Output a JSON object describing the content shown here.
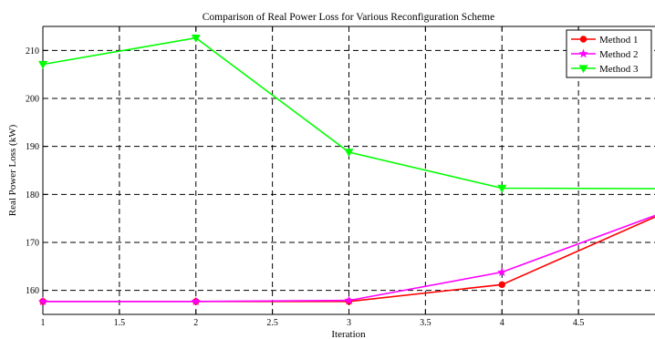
{
  "chart_data": {
    "type": "line",
    "title": "Comparison of Real Power Loss for Various Reconfiguration Scheme",
    "xlabel": "Iteration",
    "ylabel": "Real Power Loss (kW)",
    "xlim": [
      1,
      5
    ],
    "ylim": [
      155,
      215
    ],
    "xticks": [
      1,
      1.5,
      2,
      2.5,
      3,
      3.5,
      4,
      4.5
    ],
    "xtick_labels": [
      "1",
      "1.5",
      "2",
      "2.5",
      "3",
      "3.5",
      "4",
      "4.5"
    ],
    "yticks": [
      160,
      170,
      180,
      190,
      200,
      210
    ],
    "ytick_labels": [
      "160",
      "170",
      "180",
      "190",
      "200",
      "210"
    ],
    "grid": true,
    "legend_position": "top-right",
    "x": [
      1,
      2,
      3,
      4,
      5
    ],
    "series": [
      {
        "name": "Method 1",
        "values": [
          157.7,
          157.7,
          157.7,
          161.2,
          175.3
        ],
        "color": "#ff0000",
        "marker": "circle"
      },
      {
        "name": "Method 2",
        "values": [
          157.7,
          157.7,
          157.9,
          163.8,
          175.6
        ],
        "color": "#ff00ff",
        "marker": "star"
      },
      {
        "name": "Method 3",
        "values": [
          207.1,
          212.6,
          188.8,
          181.3,
          181.2
        ],
        "color": "#00ff00",
        "marker": "triangle-down"
      }
    ]
  }
}
